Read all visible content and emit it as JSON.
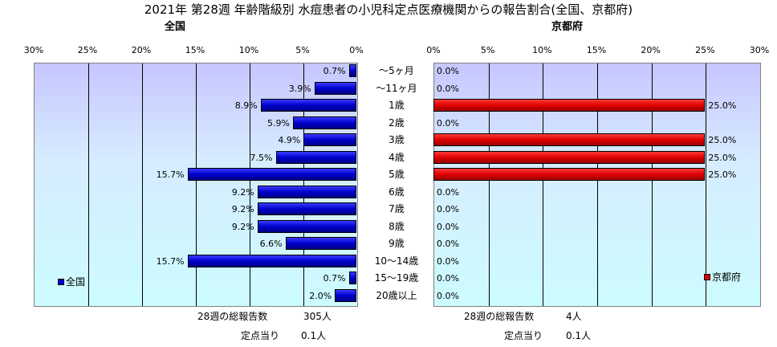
{
  "title": "2021年 第28週 年齢階級別 水痘患者の小児科定点医療機関からの報告割合(全国、京都府)",
  "chart_data": [
    {
      "type": "bar",
      "orientation": "horizontal",
      "direction": "right-to-left",
      "title": "全国",
      "legend": "全国",
      "xlim": [
        0,
        30
      ],
      "ticks": [
        "30%",
        "25%",
        "20%",
        "15%",
        "10%",
        "5%",
        "0%"
      ],
      "categories": [
        "～5ヶ月",
        "～11ヶ月",
        "1歳",
        "2歳",
        "3歳",
        "4歳",
        "5歳",
        "6歳",
        "7歳",
        "8歳",
        "9歳",
        "10～14歳",
        "15～19歳",
        "20歳以上"
      ],
      "values": [
        0.7,
        3.9,
        8.9,
        5.9,
        4.9,
        7.5,
        15.7,
        9.2,
        9.2,
        9.2,
        6.6,
        15.7,
        0.7,
        2.0
      ],
      "labels": [
        "0.7%",
        "3.9%",
        "8.9%",
        "5.9%",
        "4.9%",
        "7.5%",
        "15.7%",
        "9.2%",
        "9.2%",
        "9.2%",
        "6.6%",
        "15.7%",
        "0.7%",
        "2.0%"
      ],
      "color": "#0000dd"
    },
    {
      "type": "bar",
      "orientation": "horizontal",
      "direction": "left-to-right",
      "title": "京都府",
      "legend": "京都府",
      "xlim": [
        0,
        30
      ],
      "ticks": [
        "0%",
        "5%",
        "10%",
        "15%",
        "20%",
        "25%",
        "30%"
      ],
      "categories": [
        "～5ヶ月",
        "～11ヶ月",
        "1歳",
        "2歳",
        "3歳",
        "4歳",
        "5歳",
        "6歳",
        "7歳",
        "8歳",
        "9歳",
        "10～14歳",
        "15～19歳",
        "20歳以上"
      ],
      "values": [
        0.0,
        0.0,
        25.0,
        0.0,
        25.0,
        25.0,
        25.0,
        0.0,
        0.0,
        0.0,
        0.0,
        0.0,
        0.0,
        0.0
      ],
      "labels": [
        "0.0%",
        "0.0%",
        "25.0%",
        "0.0%",
        "25.0%",
        "25.0%",
        "25.0%",
        "0.0%",
        "0.0%",
        "0.0%",
        "0.0%",
        "0.0%",
        "0.0%",
        "0.0%"
      ],
      "color": "#dd0000"
    }
  ],
  "footer": {
    "national": {
      "total_label": "28週の総報告数",
      "total_value": "305人",
      "per_label": "定点当り",
      "per_value": "0.1人"
    },
    "kyoto": {
      "total_label": "28週の総報告数",
      "total_value": "4人",
      "per_label": "定点当り",
      "per_value": "0.1人"
    }
  }
}
